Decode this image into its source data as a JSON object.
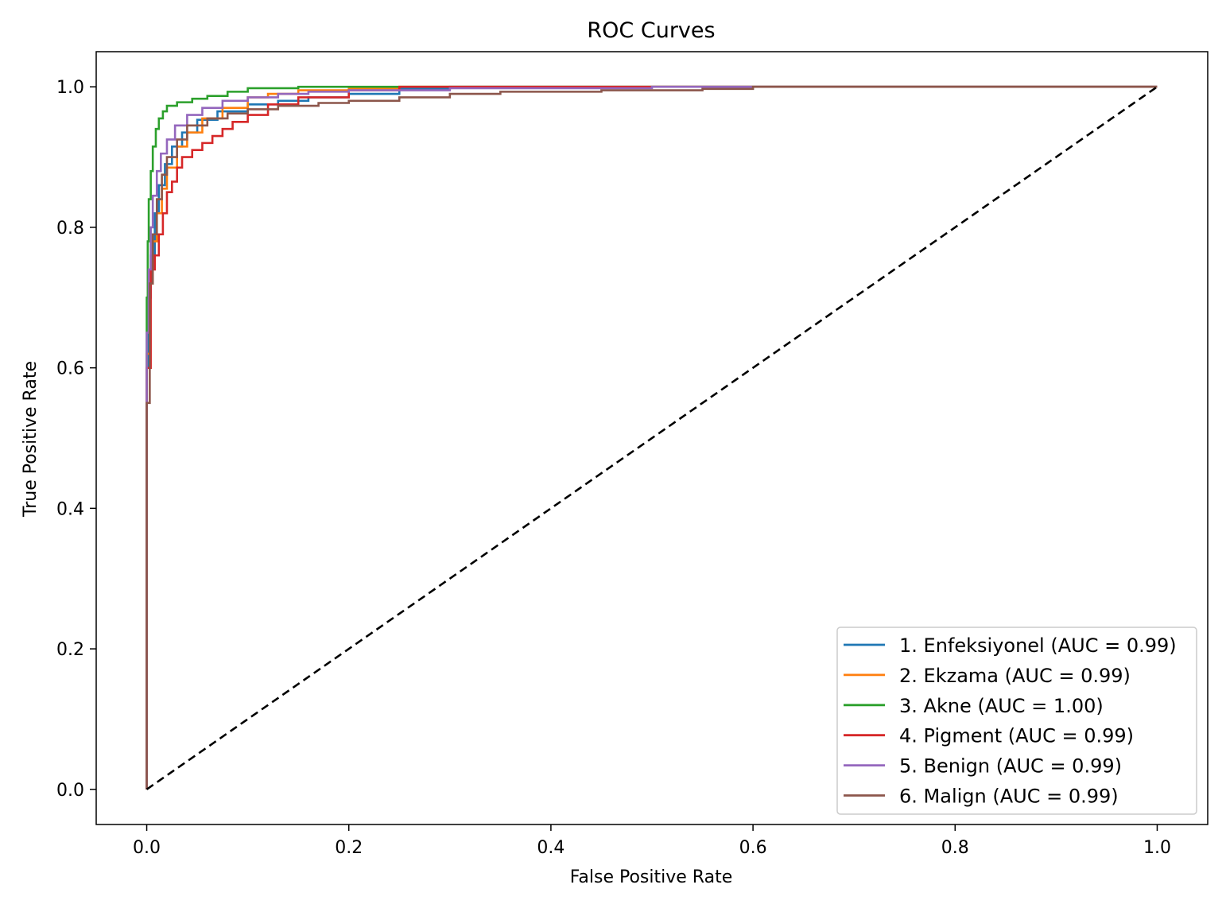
{
  "chart_data": {
    "type": "line",
    "title": "ROC Curves",
    "xlabel": "False Positive Rate",
    "ylabel": "True Positive Rate",
    "xlim": [
      -0.05,
      1.05
    ],
    "ylim": [
      -0.05,
      1.05
    ],
    "xticks": [
      "0.0",
      "0.2",
      "0.4",
      "0.6",
      "0.8",
      "1.0"
    ],
    "yticks": [
      "0.0",
      "0.2",
      "0.4",
      "0.6",
      "0.8",
      "1.0"
    ],
    "grid": false,
    "legend_position": "lower-right",
    "diagonal": {
      "style": "dashed",
      "color": "#000000",
      "x": [
        0,
        1
      ],
      "y": [
        0,
        1
      ]
    },
    "series": [
      {
        "name": "1. Enfeksiyonel (AUC = 0.99)",
        "color": "#1f77b4",
        "x": [
          0,
          0,
          0.002,
          0.004,
          0.008,
          0.012,
          0.018,
          0.025,
          0.035,
          0.05,
          0.07,
          0.1,
          0.13,
          0.16,
          0.2,
          0.25,
          0.3,
          0.4,
          0.6,
          1.0
        ],
        "y": [
          0,
          0.6,
          0.7,
          0.76,
          0.82,
          0.86,
          0.89,
          0.915,
          0.935,
          0.953,
          0.965,
          0.975,
          0.98,
          0.985,
          0.99,
          0.997,
          1.0,
          1.0,
          1.0,
          1.0
        ]
      },
      {
        "name": "2. Ekzama (AUC = 0.99)",
        "color": "#ff7f0e",
        "x": [
          0,
          0,
          0.003,
          0.006,
          0.01,
          0.015,
          0.02,
          0.03,
          0.04,
          0.055,
          0.075,
          0.1,
          0.12,
          0.15,
          0.2,
          0.25,
          0.3,
          0.5,
          1.0
        ],
        "y": [
          0,
          0.62,
          0.72,
          0.78,
          0.82,
          0.855,
          0.885,
          0.915,
          0.935,
          0.955,
          0.97,
          0.985,
          0.99,
          0.995,
          0.998,
          1.0,
          1.0,
          1.0,
          1.0
        ]
      },
      {
        "name": "3. Akne (AUC = 1.00)",
        "color": "#2ca02c",
        "x": [
          0,
          0,
          0.001,
          0.002,
          0.004,
          0.006,
          0.009,
          0.012,
          0.016,
          0.02,
          0.03,
          0.045,
          0.06,
          0.08,
          0.1,
          0.15,
          0.2,
          1.0
        ],
        "y": [
          0,
          0.7,
          0.78,
          0.84,
          0.88,
          0.915,
          0.94,
          0.955,
          0.965,
          0.973,
          0.978,
          0.983,
          0.987,
          0.993,
          0.998,
          1.0,
          1.0,
          1.0
        ]
      },
      {
        "name": "4. Pigment (AUC = 0.99)",
        "color": "#d62728",
        "x": [
          0,
          0,
          0.004,
          0.008,
          0.012,
          0.016,
          0.02,
          0.025,
          0.03,
          0.035,
          0.045,
          0.055,
          0.065,
          0.075,
          0.085,
          0.1,
          0.12,
          0.15,
          0.2,
          0.25,
          0.28,
          0.4,
          1.0
        ],
        "y": [
          0,
          0.6,
          0.74,
          0.76,
          0.79,
          0.82,
          0.85,
          0.865,
          0.885,
          0.9,
          0.91,
          0.92,
          0.93,
          0.94,
          0.95,
          0.96,
          0.975,
          0.985,
          0.995,
          1.0,
          1.0,
          1.0,
          1.0
        ]
      },
      {
        "name": "5. Benign (AUC = 0.99)",
        "color": "#9467bd",
        "x": [
          0,
          0,
          0.002,
          0.004,
          0.006,
          0.01,
          0.014,
          0.02,
          0.028,
          0.04,
          0.055,
          0.075,
          0.1,
          0.13,
          0.16,
          0.2,
          0.3,
          0.5,
          1.0
        ],
        "y": [
          0,
          0.65,
          0.74,
          0.8,
          0.845,
          0.88,
          0.905,
          0.925,
          0.945,
          0.96,
          0.97,
          0.98,
          0.985,
          0.99,
          0.993,
          0.995,
          0.998,
          1.0,
          1.0
        ]
      },
      {
        "name": "6. Malign (AUC = 0.99)",
        "color": "#8c564b",
        "x": [
          0,
          0,
          0.003,
          0.006,
          0.01,
          0.015,
          0.02,
          0.03,
          0.04,
          0.06,
          0.08,
          0.1,
          0.13,
          0.17,
          0.2,
          0.25,
          0.3,
          0.35,
          0.45,
          0.55,
          0.6,
          0.7,
          1.0
        ],
        "y": [
          0,
          0.55,
          0.72,
          0.79,
          0.84,
          0.875,
          0.9,
          0.925,
          0.945,
          0.955,
          0.962,
          0.968,
          0.973,
          0.977,
          0.98,
          0.985,
          0.99,
          0.993,
          0.995,
          0.997,
          1.0,
          1.0,
          1.0
        ]
      }
    ]
  }
}
